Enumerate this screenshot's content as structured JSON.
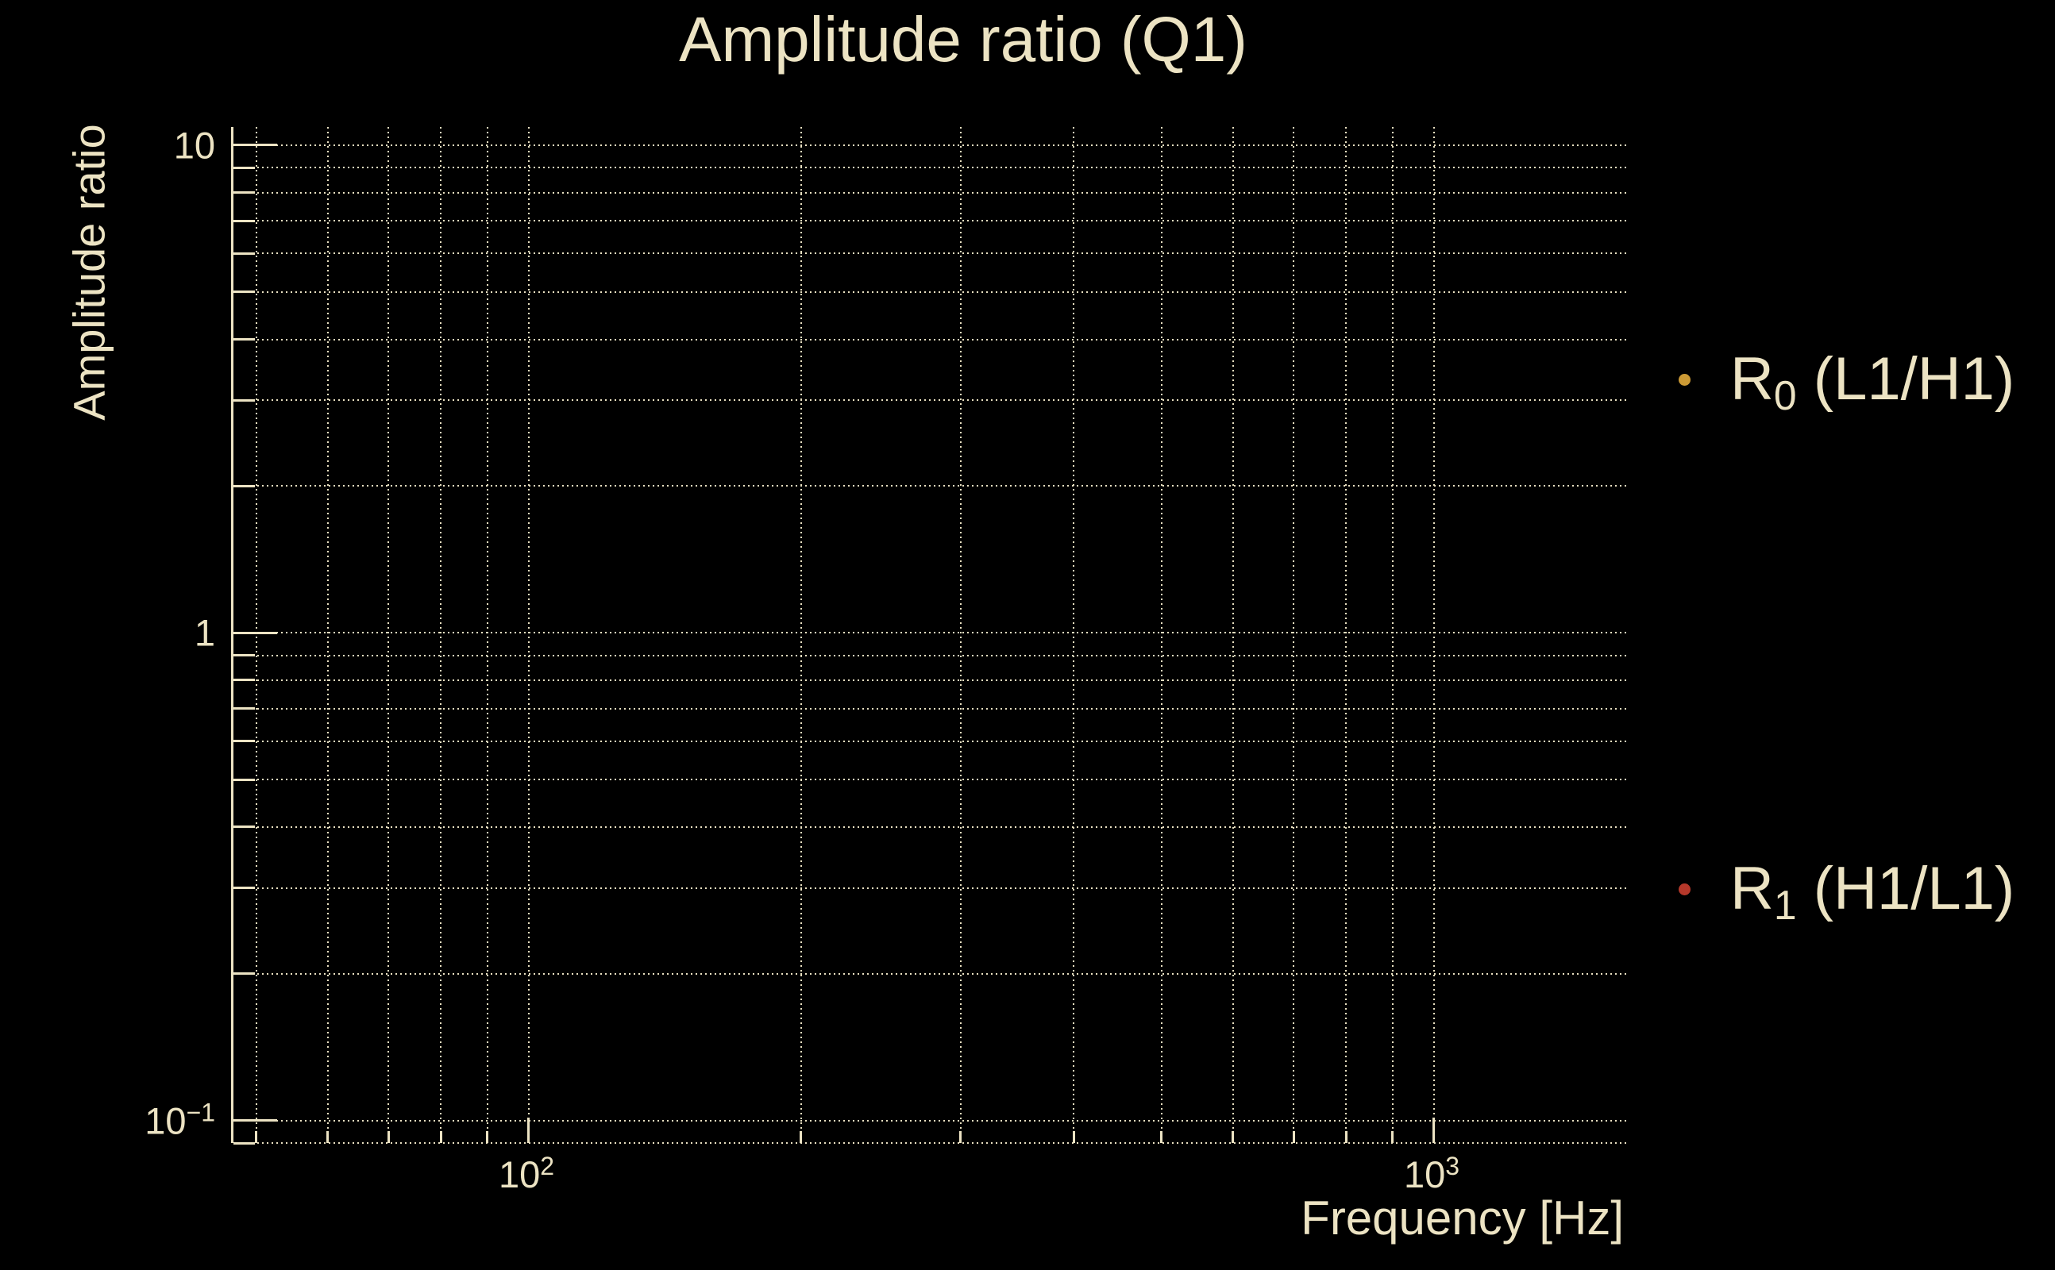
{
  "title": {
    "text": "Amplitude ratio (Q1)"
  },
  "axes": {
    "xlabel": "Frequency [Hz]",
    "ylabel": "Amplitude ratio",
    "x_ticks": [
      {
        "base": "10",
        "exp": "2"
      },
      {
        "base": "10",
        "exp": "3"
      }
    ],
    "y_ticks": [
      {
        "base": "10",
        "exp": ""
      },
      {
        "base": "1",
        "exp": ""
      },
      {
        "base": "10",
        "exp": "−1"
      }
    ]
  },
  "legend": {
    "entries": [
      {
        "prefix": "R",
        "sub": "0",
        "suffix": " (L1/H1)",
        "marker_color": "#cc9a35"
      },
      {
        "prefix": "R",
        "sub": "1",
        "suffix": " (H1/L1)",
        "marker_color": "#b5382a"
      }
    ]
  },
  "colors": {
    "background": "#000000",
    "foreground": "#ece3c3",
    "grid": "#e8dfc0",
    "series0": "#cc9a35",
    "series1": "#b5382a"
  },
  "chart_data": {
    "type": "scatter",
    "title": "Amplitude ratio (Q1)",
    "xlabel": "Frequency [Hz]",
    "ylabel": "Amplitude ratio",
    "xscale": "log",
    "yscale": "log",
    "xlim": [
      47.2,
      1631
    ],
    "ylim": [
      0.09,
      10.9
    ],
    "x_major_ticks": [
      100,
      1000
    ],
    "x_major_tick_labels": [
      "10^2",
      "10^3"
    ],
    "y_major_ticks": [
      10,
      1,
      0.1
    ],
    "y_major_tick_labels": [
      "10",
      "1",
      "10^-1"
    ],
    "grid": {
      "major": true,
      "minor": true,
      "style": "dotted"
    },
    "legend_position": "outside-right",
    "series": [
      {
        "name": "R_0 (L1/H1)",
        "color": "#cc9a35",
        "marker": "point",
        "x": [],
        "y": []
      },
      {
        "name": "R_1 (H1/L1)",
        "color": "#b5382a",
        "marker": "point",
        "x": [],
        "y": []
      }
    ]
  }
}
